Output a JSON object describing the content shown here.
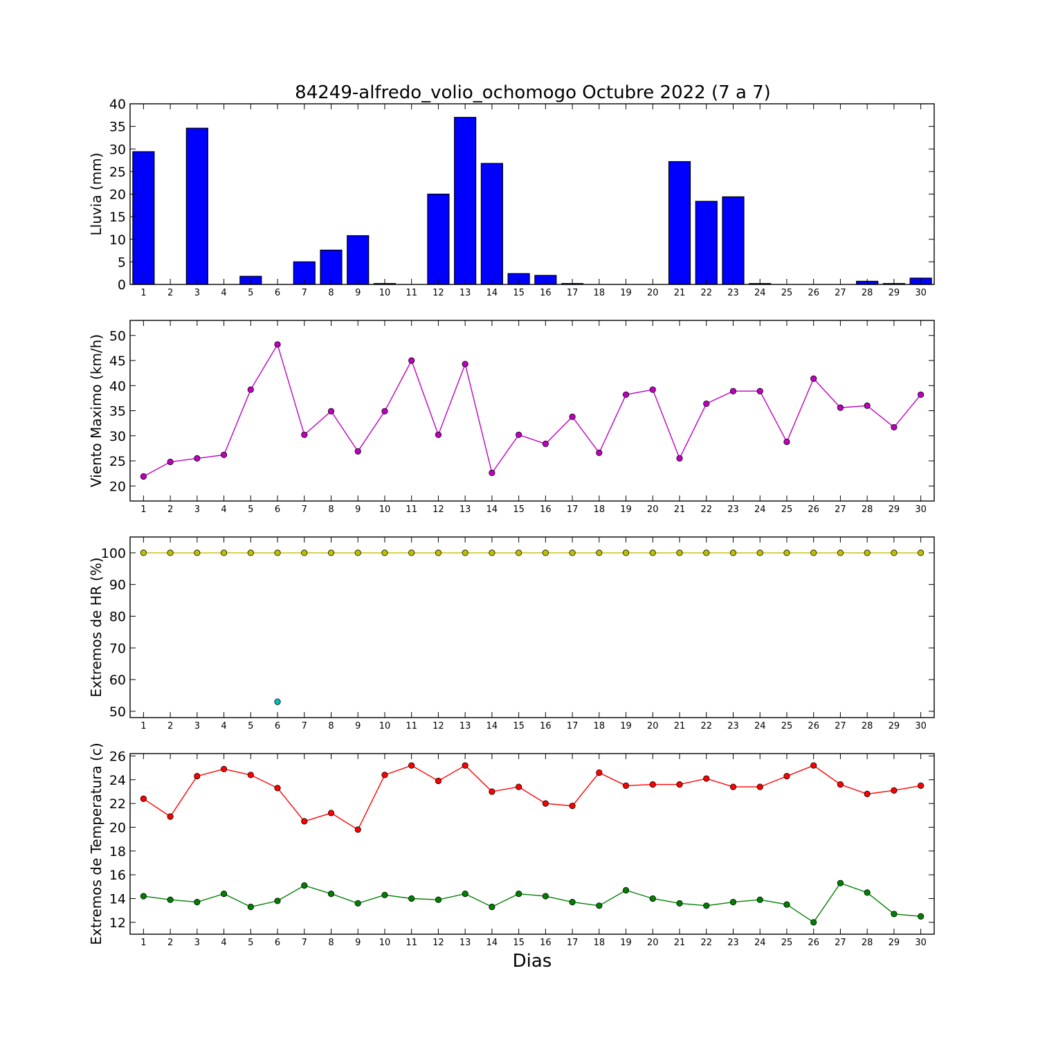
{
  "chart_data": {
    "title": "84249-alfredo_volio_ochomogo Octubre 2022  (7 a 7)",
    "xlabel": "Dias",
    "days": [
      1,
      2,
      3,
      4,
      5,
      6,
      7,
      8,
      9,
      10,
      11,
      12,
      13,
      14,
      15,
      16,
      17,
      18,
      19,
      20,
      21,
      22,
      23,
      24,
      25,
      26,
      27,
      28,
      29,
      30
    ],
    "x_tick_labels": [
      "1",
      "2",
      "3",
      "4",
      "5",
      "6",
      "7",
      "8",
      "9",
      "10",
      "11",
      "12",
      "13",
      "14",
      "15",
      "16",
      "17",
      "18",
      "19",
      "20",
      "21",
      "22",
      "23",
      "24",
      "25",
      "26",
      "27",
      "28",
      "29",
      "30"
    ],
    "panels": [
      {
        "type": "bar",
        "ylabel": "Lluvia (mm)",
        "ylim": [
          0,
          40
        ],
        "yticks": [
          0,
          5,
          10,
          15,
          20,
          25,
          30,
          35,
          40
        ],
        "ytick_labels": [
          "0",
          "5",
          "10",
          "15",
          "20",
          "25",
          "30",
          "35",
          "40"
        ],
        "series": [
          {
            "color": "#0000ff",
            "values": [
              29.4,
              0,
              34.6,
              0,
              1.8,
              0,
              5.0,
              7.6,
              10.8,
              0.2,
              0,
              20.0,
              37.0,
              26.8,
              2.4,
              2.0,
              0.2,
              0,
              0,
              0,
              27.2,
              18.4,
              19.4,
              0.2,
              0,
              0,
              0,
              0.7,
              0.2,
              1.4
            ]
          }
        ]
      },
      {
        "type": "line",
        "ylabel": "Viento Maximo (km/h)",
        "ylim": [
          17,
          53
        ],
        "yticks": [
          20,
          25,
          30,
          35,
          40,
          45,
          50
        ],
        "ytick_labels": [
          "20",
          "25",
          "30",
          "35",
          "40",
          "45",
          "50"
        ],
        "series": [
          {
            "color": "#bf00bf",
            "marker": true,
            "values": [
              21.9,
              24.8,
              25.5,
              26.2,
              39.2,
              48.2,
              30.2,
              34.9,
              26.9,
              34.9,
              45.0,
              30.2,
              44.3,
              22.6,
              30.2,
              28.4,
              33.8,
              26.6,
              38.2,
              39.2,
              25.5,
              36.4,
              38.9,
              38.9,
              28.8,
              41.4,
              35.6,
              36.0,
              31.7,
              38.2
            ]
          }
        ]
      },
      {
        "type": "line",
        "ylabel": "Extremos de HR (%)",
        "ylim": [
          48,
          105
        ],
        "yticks": [
          50,
          60,
          70,
          80,
          90,
          100
        ],
        "ytick_labels": [
          "50",
          "60",
          "70",
          "80",
          "90",
          "100"
        ],
        "series": [
          {
            "color": "#bfbf00",
            "marker": true,
            "values": [
              100,
              100,
              100,
              100,
              100,
              100,
              100,
              100,
              100,
              100,
              100,
              100,
              100,
              100,
              100,
              100,
              100,
              100,
              100,
              100,
              100,
              100,
              100,
              100,
              100,
              100,
              100,
              100,
              100,
              100
            ]
          },
          {
            "color": "#00bfbf",
            "marker": true,
            "values": [
              null,
              null,
              null,
              null,
              null,
              53.0,
              null,
              null,
              null,
              null,
              null,
              null,
              null,
              null,
              null,
              null,
              null,
              null,
              null,
              null,
              null,
              null,
              null,
              null,
              null,
              null,
              null,
              null,
              null,
              null
            ]
          }
        ]
      },
      {
        "type": "line",
        "ylabel": "Extremos de Temperatura (c)",
        "ylim": [
          11,
          26.2
        ],
        "yticks": [
          12,
          14,
          16,
          18,
          20,
          22,
          24,
          26
        ],
        "ytick_labels": [
          "12",
          "14",
          "16",
          "18",
          "20",
          "22",
          "24",
          "26"
        ],
        "series": [
          {
            "color": "#ff0000",
            "marker": true,
            "values": [
              22.4,
              20.9,
              24.3,
              24.9,
              24.4,
              23.3,
              20.5,
              21.2,
              19.8,
              24.4,
              25.2,
              23.9,
              25.2,
              23.0,
              23.4,
              22.0,
              21.8,
              24.6,
              23.5,
              23.6,
              23.6,
              24.1,
              23.4,
              23.4,
              24.3,
              25.2,
              23.6,
              22.8,
              23.1,
              23.5
            ]
          },
          {
            "color": "#008000",
            "marker": true,
            "values": [
              14.2,
              13.9,
              13.7,
              14.4,
              13.3,
              13.8,
              15.1,
              14.4,
              13.6,
              14.3,
              14.0,
              13.9,
              14.4,
              13.3,
              14.4,
              14.2,
              13.7,
              13.4,
              14.7,
              14.0,
              13.6,
              13.4,
              13.7,
              13.9,
              13.5,
              12.0,
              15.3,
              14.5,
              12.7,
              12.5
            ]
          }
        ]
      }
    ]
  }
}
